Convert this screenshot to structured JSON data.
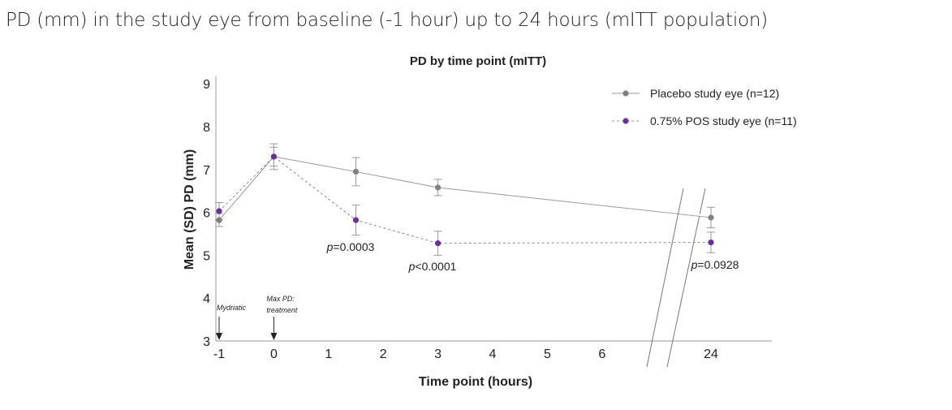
{
  "page": {
    "title": "PD (mm) in the study eye from baseline (-1 hour) up to 24 hours (mITT population)"
  },
  "chart_data": {
    "type": "line",
    "title": "PD by time point (mITT)",
    "xlabel": "Time point (hours)",
    "ylabel": "Mean (SD) PD (mm)",
    "ylim": [
      3,
      9
    ],
    "x_ticks": [
      "-1",
      "0",
      "1",
      "2",
      "3",
      "4",
      "5",
      "6",
      "24"
    ],
    "y_ticks": [
      "3",
      "4",
      "5",
      "6",
      "7",
      "8",
      "9"
    ],
    "axis_break": "between 6 and 24 hours",
    "series": [
      {
        "name": "Placebo study eye (n=12)",
        "color": "#808080",
        "line_style": "solid",
        "x": [
          -1,
          0,
          1.5,
          3,
          24
        ],
        "mean": [
          5.82,
          7.3,
          6.95,
          6.58,
          5.88
        ],
        "sd": [
          0.15,
          0.3,
          0.33,
          0.19,
          0.24
        ]
      },
      {
        "name": "0.75% POS study eye (n=11)",
        "color": "#6a2f98",
        "line_style": "dashed",
        "x": [
          -1,
          0,
          1.5,
          3,
          24
        ],
        "mean": [
          6.03,
          7.3,
          5.82,
          5.28,
          5.3
        ],
        "sd": [
          0.2,
          0.22,
          0.35,
          0.28,
          0.24
        ]
      }
    ],
    "annotations": [
      {
        "prefix": "p",
        "text": "=0.0003",
        "x": 1.5
      },
      {
        "prefix": "p",
        "text": "<0.0001",
        "x": 3
      },
      {
        "prefix": "p",
        "text": "=0.0928",
        "x": 24
      }
    ],
    "markers": [
      {
        "line1": "Mydriatic",
        "line2": "",
        "x": -1
      },
      {
        "line1": "Max PD:",
        "line2": "treatment",
        "x": 0
      }
    ],
    "legend_position": "top-right"
  }
}
